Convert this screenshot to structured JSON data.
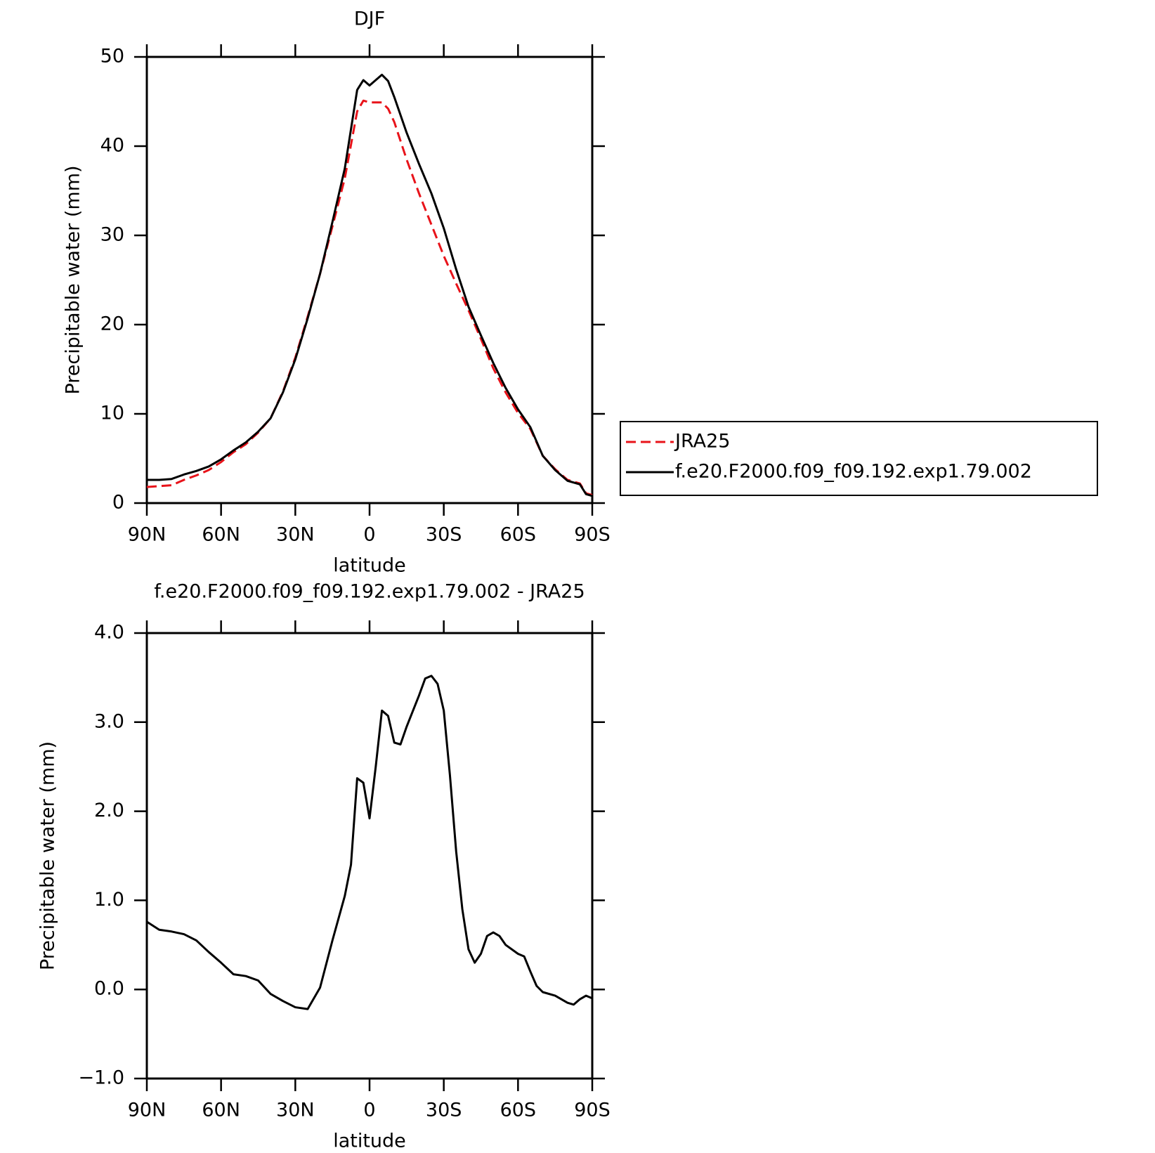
{
  "chart_data": [
    {
      "type": "line",
      "title": "DJF",
      "xlabel": "latitude",
      "ylabel": "Precipitable water (mm)",
      "x": [
        90,
        85,
        80,
        75,
        70,
        65,
        60,
        55,
        50,
        45,
        40,
        35,
        30,
        25,
        20,
        15,
        10,
        5,
        2.5,
        0,
        -2.5,
        -5,
        -7.5,
        -10,
        -15,
        -20,
        -25,
        -30,
        -35,
        -40,
        -45,
        -50,
        -55,
        -60,
        -65,
        -70,
        -75,
        -80,
        -85,
        -87.5,
        -90
      ],
      "series": [
        {
          "name": "JRA25",
          "color": "#e8131a",
          "dashed": true,
          "values": [
            1.8,
            1.9,
            2.0,
            2.6,
            3.1,
            3.7,
            4.6,
            5.7,
            6.6,
            7.9,
            9.5,
            12.5,
            16.3,
            20.9,
            25.7,
            31.0,
            36.4,
            43.9,
            45.1,
            44.9,
            44.9,
            44.9,
            44.2,
            42.7,
            38.5,
            34.7,
            31.2,
            27.7,
            24.6,
            21.6,
            18.4,
            15.1,
            12.4,
            10.1,
            8.3,
            5.3,
            3.8,
            2.6,
            2.2,
            1.1,
            0.9
          ]
        },
        {
          "name": "f.e20.F2000.f09_f09.192.exp1.79.002",
          "color": "#000000",
          "dashed": false,
          "values": [
            2.6,
            2.6,
            2.7,
            3.2,
            3.6,
            4.1,
            4.9,
            5.9,
            6.8,
            8.0,
            9.5,
            12.4,
            16.1,
            20.7,
            25.7,
            31.5,
            37.5,
            46.3,
            47.4,
            46.8,
            47.4,
            48.0,
            47.3,
            45.5,
            41.5,
            38.0,
            34.7,
            30.8,
            26.2,
            22.0,
            18.8,
            15.7,
            12.9,
            10.5,
            8.5,
            5.3,
            3.7,
            2.5,
            2.1,
            1.0,
            0.8
          ]
        }
      ],
      "xlim": [
        90,
        -90
      ],
      "xticks": [
        {
          "value": 90,
          "label": "90N"
        },
        {
          "value": 60,
          "label": "60N"
        },
        {
          "value": 30,
          "label": "30N"
        },
        0,
        {
          "value": -30,
          "label": "30S"
        },
        {
          "value": -60,
          "label": "60S"
        },
        {
          "value": -90,
          "label": "90S"
        }
      ],
      "ylim": [
        0,
        50
      ],
      "yticks": [
        0,
        10,
        20,
        30,
        40,
        50
      ],
      "legend": "right"
    },
    {
      "type": "line",
      "title": "f.e20.F2000.f09_f09.192.exp1.79.002 - JRA25",
      "xlabel": "latitude",
      "ylabel": "Precipitable water (mm)",
      "x": [
        90,
        85,
        80,
        75,
        70,
        65,
        60,
        55,
        50,
        45,
        40,
        35,
        30,
        25,
        20,
        15,
        10,
        7.5,
        5,
        2.5,
        0,
        -2.5,
        -5,
        -7.5,
        -10,
        -12.5,
        -15,
        -20,
        -22.5,
        -25,
        -27.5,
        -30,
        -32.5,
        -35,
        -37.5,
        -40,
        -42.5,
        -45,
        -47.5,
        -50,
        -52.5,
        -55,
        -60,
        -62.5,
        -65,
        -67.5,
        -70,
        -75,
        -80,
        -82.5,
        -85,
        -87.5,
        -90
      ],
      "values": [
        0.76,
        0.67,
        0.65,
        0.62,
        0.55,
        0.42,
        0.3,
        0.17,
        0.15,
        0.1,
        -0.05,
        -0.13,
        -0.2,
        -0.22,
        0.02,
        0.55,
        1.05,
        1.4,
        2.37,
        2.32,
        1.92,
        2.5,
        3.13,
        3.07,
        2.77,
        2.75,
        2.95,
        3.3,
        3.49,
        3.52,
        3.43,
        3.13,
        2.4,
        1.55,
        0.9,
        0.45,
        0.3,
        0.4,
        0.6,
        0.64,
        0.6,
        0.5,
        0.4,
        0.37,
        0.2,
        0.04,
        -0.03,
        -0.07,
        -0.15,
        -0.17,
        -0.11,
        -0.07,
        -0.1
      ],
      "color": "#000000",
      "xlim": [
        90,
        -90
      ],
      "xticks": [
        {
          "value": 90,
          "label": "90N"
        },
        {
          "value": 60,
          "label": "60N"
        },
        {
          "value": 30,
          "label": "30N"
        },
        0,
        {
          "value": -30,
          "label": "30S"
        },
        {
          "value": -60,
          "label": "60S"
        },
        {
          "value": -90,
          "label": "90S"
        }
      ],
      "ylim": [
        -1,
        4
      ],
      "yticks": [
        {
          "value": -1,
          "label": "−1.0"
        },
        {
          "value": 0,
          "label": "0.0"
        },
        {
          "value": 1,
          "label": "1.0"
        },
        {
          "value": 2,
          "label": "2.0"
        },
        {
          "value": 3,
          "label": "3.0"
        },
        {
          "value": 4,
          "label": "4.0"
        }
      ]
    }
  ]
}
